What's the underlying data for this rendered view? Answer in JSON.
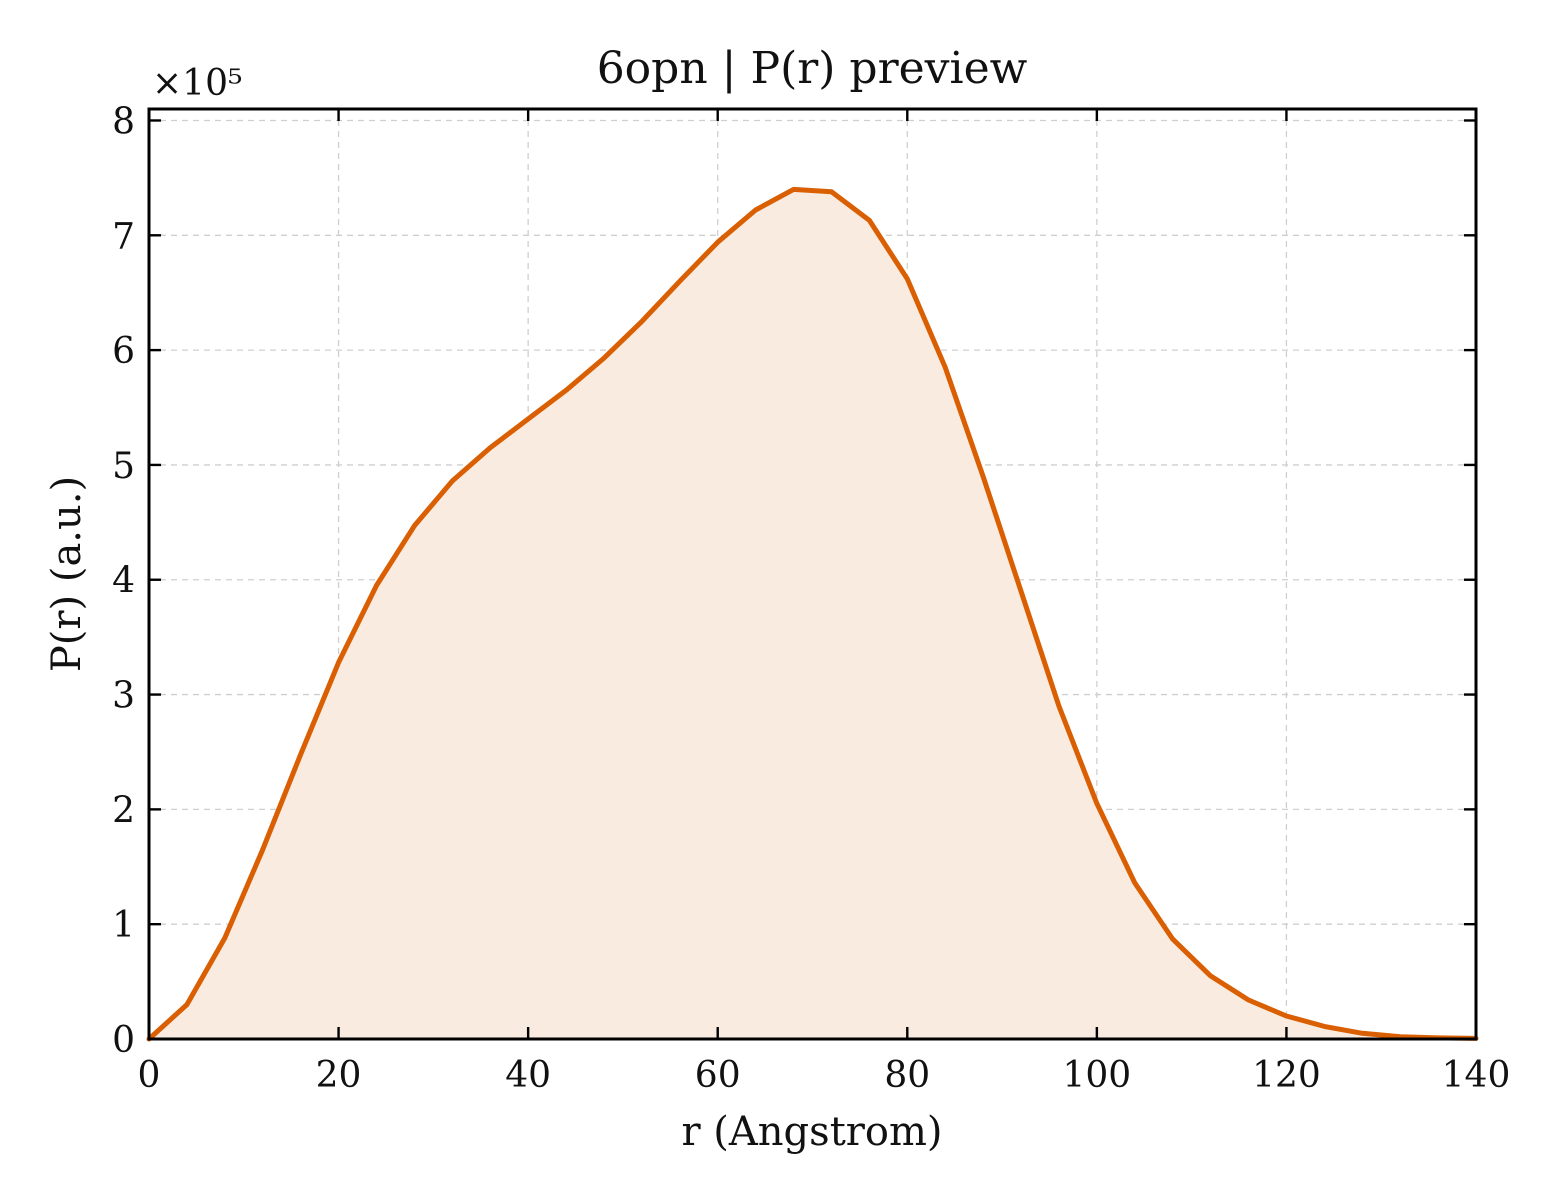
{
  "chart_data": {
    "type": "area",
    "title": "6opn | P(r) preview",
    "xlabel": "r (Angstrom)",
    "ylabel": "P(r) (a.u.)",
    "y_multiplier_label": "×10⁵",
    "y_multiplier": 100000,
    "xlim": [
      0,
      140
    ],
    "ylim": [
      0,
      810000
    ],
    "x_ticks": [
      0,
      20,
      40,
      60,
      80,
      100,
      120,
      140
    ],
    "y_ticks": [
      0,
      100000,
      200000,
      300000,
      400000,
      500000,
      600000,
      700000,
      800000
    ],
    "y_tick_labels": [
      "0",
      "1",
      "2",
      "3",
      "4",
      "5",
      "6",
      "7",
      "8"
    ],
    "x_tick_labels": [
      "0",
      "20",
      "40",
      "60",
      "80",
      "100",
      "120",
      "140"
    ],
    "grid": true,
    "colors": {
      "line": "#d95f02",
      "fill": "#f9ebe0"
    },
    "series": [
      {
        "x": [
          0,
          4,
          8,
          12,
          16,
          20,
          24,
          28,
          32,
          36,
          40,
          44,
          48,
          52,
          56,
          60,
          64,
          68,
          72,
          76,
          80,
          84,
          88,
          92,
          96,
          100,
          104,
          108,
          112,
          116,
          120,
          124,
          128,
          132,
          136,
          140
        ],
        "y": [
          0,
          30000,
          88000,
          165000,
          248000,
          328000,
          395000,
          447000,
          486000,
          515000,
          540000,
          565000,
          593000,
          625000,
          660000,
          694000,
          722000,
          740000,
          738000,
          713000,
          662000,
          585000,
          490000,
          390000,
          290000,
          205000,
          136000,
          87000,
          55000,
          34000,
          20000,
          11000,
          5000,
          2000,
          1000,
          500
        ]
      }
    ]
  }
}
